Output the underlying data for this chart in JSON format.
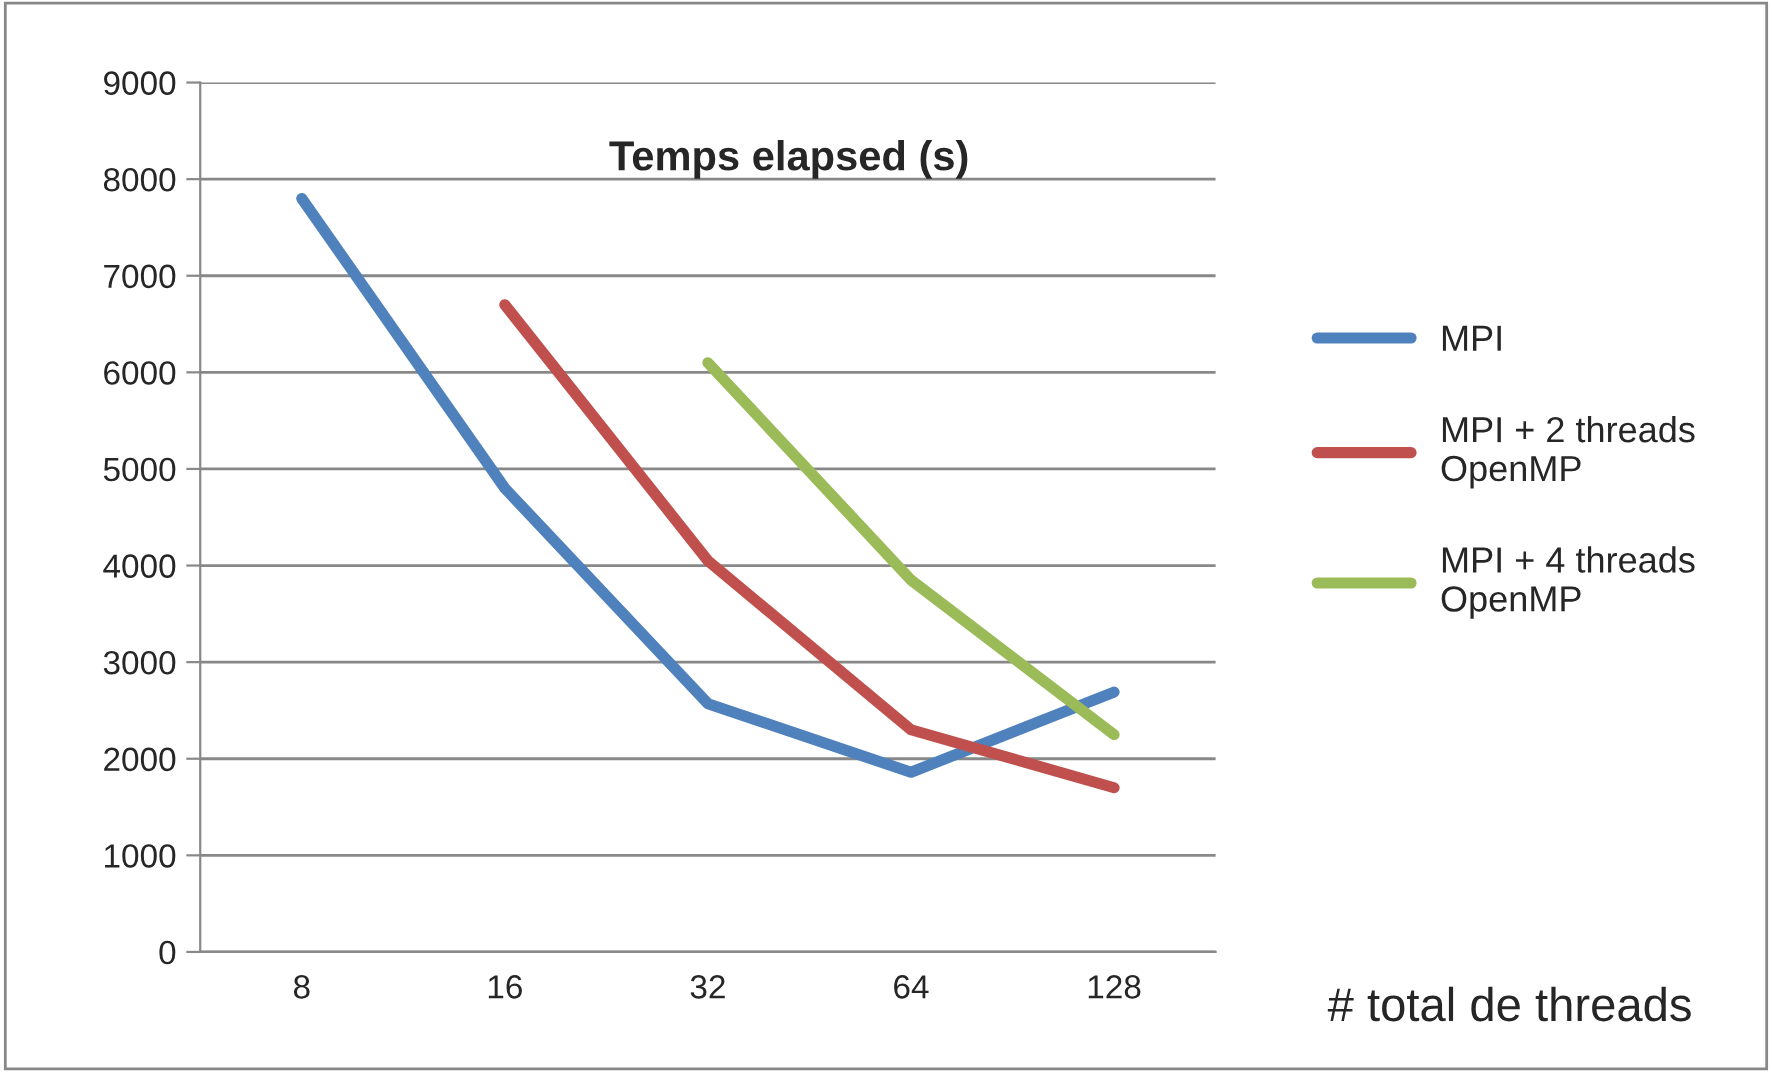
{
  "chart_data": {
    "type": "line",
    "title": "Temps elapsed (s)",
    "xlabel": "# total de threads",
    "categories": [
      "8",
      "16",
      "32",
      "64",
      "128"
    ],
    "series": [
      {
        "name": "MPI",
        "color": "#4f81bd",
        "values": [
          7800,
          4800,
          2570,
          1860,
          2690
        ]
      },
      {
        "name": "MPI + 2 threads\nOpenMP",
        "color": "#c0504d",
        "values": [
          null,
          6700,
          4050,
          2300,
          1700
        ]
      },
      {
        "name": "MPI + 4 threads\nOpenMP",
        "color": "#9bbb59",
        "values": [
          null,
          null,
          6100,
          3850,
          2250
        ]
      }
    ],
    "ylim": [
      0,
      9000
    ],
    "yticks": [
      0,
      1000,
      2000,
      3000,
      4000,
      5000,
      6000,
      7000,
      8000,
      9000
    ],
    "grid": "y",
    "legend": "right",
    "marker": "none",
    "line_style": "solid"
  }
}
